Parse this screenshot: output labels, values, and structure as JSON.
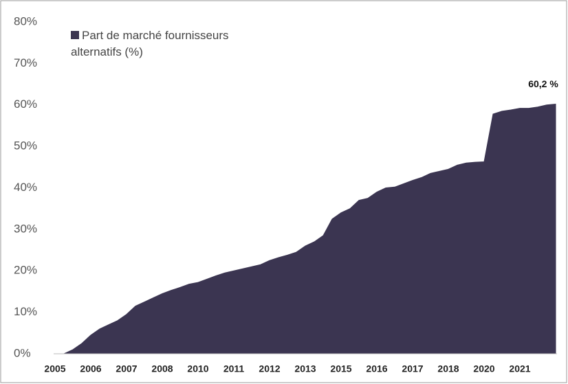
{
  "chart_data": {
    "type": "area",
    "categories": [
      "2005",
      null,
      null,
      null,
      "2006",
      null,
      null,
      null,
      "2007",
      null,
      null,
      null,
      "2008",
      null,
      null,
      null,
      "2010",
      null,
      null,
      null,
      "2011",
      null,
      null,
      null,
      "2012",
      null,
      null,
      null,
      "2013",
      null,
      null,
      null,
      "2015",
      null,
      null,
      null,
      "2016",
      null,
      null,
      null,
      "2017",
      null,
      null,
      null,
      "2018",
      null,
      null,
      null,
      "2020",
      null,
      null,
      null,
      "2021",
      null,
      null,
      null,
      null
    ],
    "series": [
      {
        "name": "Part de marché fournisseurs alternatifs (%)",
        "color": "#3b3551",
        "values": [
          0,
          0,
          1,
          2.5,
          4.5,
          6,
          7,
          8,
          9.5,
          11.5,
          12.5,
          13.5,
          14.5,
          15.3,
          16,
          16.8,
          17.2,
          18,
          18.8,
          19.5,
          20,
          20.5,
          21,
          21.5,
          22.5,
          23.2,
          23.8,
          24.5,
          26,
          27,
          28.5,
          32.5,
          34,
          35,
          37,
          37.5,
          39,
          40,
          40.2,
          41,
          41.8,
          42.5,
          43.5,
          44,
          44.5,
          45.5,
          46,
          46.2,
          46.3,
          57.8,
          58.5,
          58.8,
          59.2,
          59.2,
          59.5,
          60,
          60.2
        ],
        "value_labels": [
          null,
          null,
          null,
          null,
          null,
          null,
          null,
          null,
          null,
          null,
          null,
          null,
          null,
          null,
          null,
          null,
          null,
          null,
          null,
          null,
          null,
          null,
          null,
          null,
          null,
          null,
          null,
          null,
          null,
          null,
          null,
          null,
          null,
          null,
          null,
          null,
          null,
          null,
          null,
          null,
          null,
          null,
          null,
          null,
          null,
          null,
          null,
          null,
          null,
          null,
          null,
          null,
          null,
          null,
          null,
          null,
          "60,2 %"
        ]
      }
    ],
    "ylim": [
      0,
      80
    ],
    "yticks": [
      {
        "value": 0,
        "label": "0%"
      },
      {
        "value": 10,
        "label": "10%"
      },
      {
        "value": 20,
        "label": "20%"
      },
      {
        "value": 30,
        "label": "30%"
      },
      {
        "value": 40,
        "label": "40%"
      },
      {
        "value": 50,
        "label": "50%"
      },
      {
        "value": 60,
        "label": "60%"
      },
      {
        "value": 70,
        "label": "70%"
      },
      {
        "value": 80,
        "label": "80%"
      }
    ],
    "legend": "top-left"
  }
}
